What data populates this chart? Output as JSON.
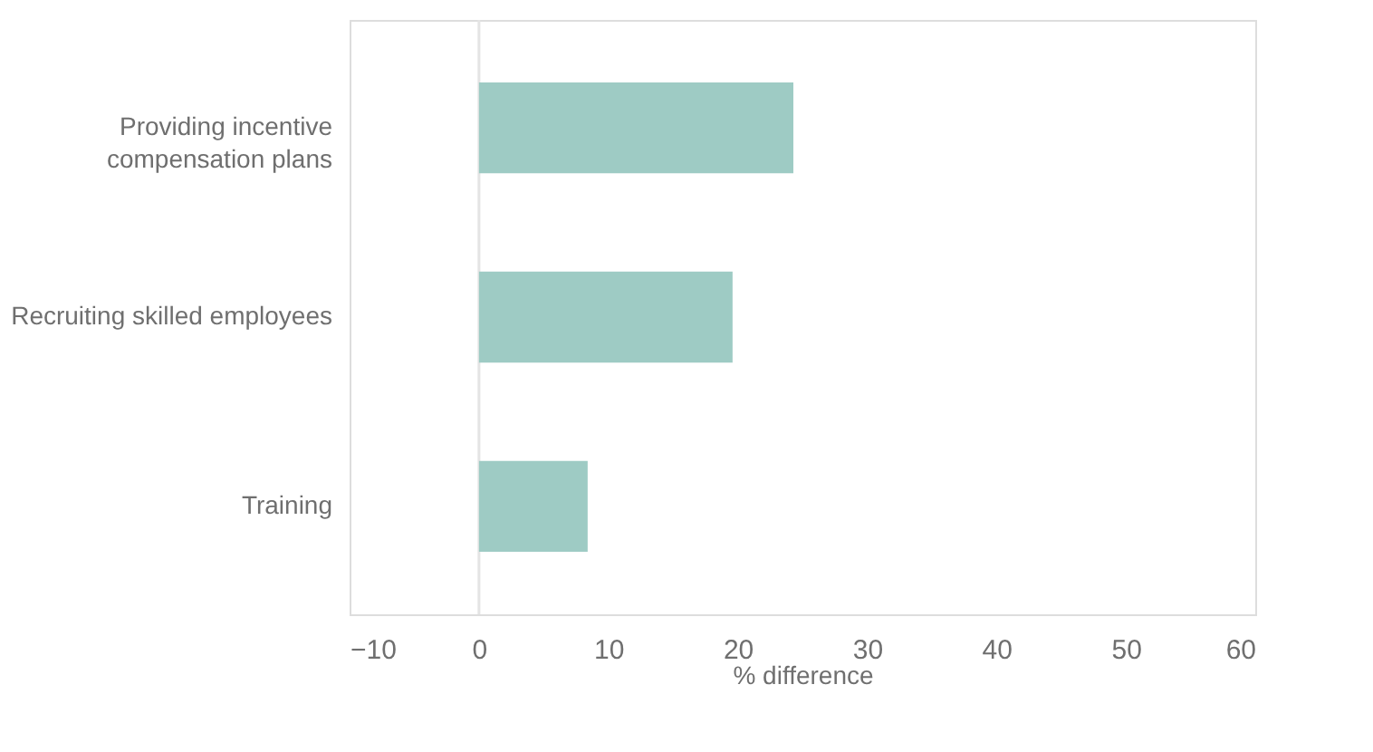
{
  "chart_data": {
    "type": "bar",
    "orientation": "horizontal",
    "xlabel": "% difference",
    "categories": [
      "Providing incentive compensation plans",
      "Recruiting skilled employees",
      "Training"
    ],
    "values": [
      24.3,
      19.6,
      8.4
    ],
    "color": "#9ecbc4",
    "xlim": [
      -10,
      60
    ],
    "xticks": [
      -10,
      0,
      10,
      20,
      30,
      40,
      50,
      60
    ],
    "ref_lines": [
      {
        "axis": "x",
        "value": 0,
        "color": "#e4e4e4"
      }
    ],
    "grid": false
  }
}
